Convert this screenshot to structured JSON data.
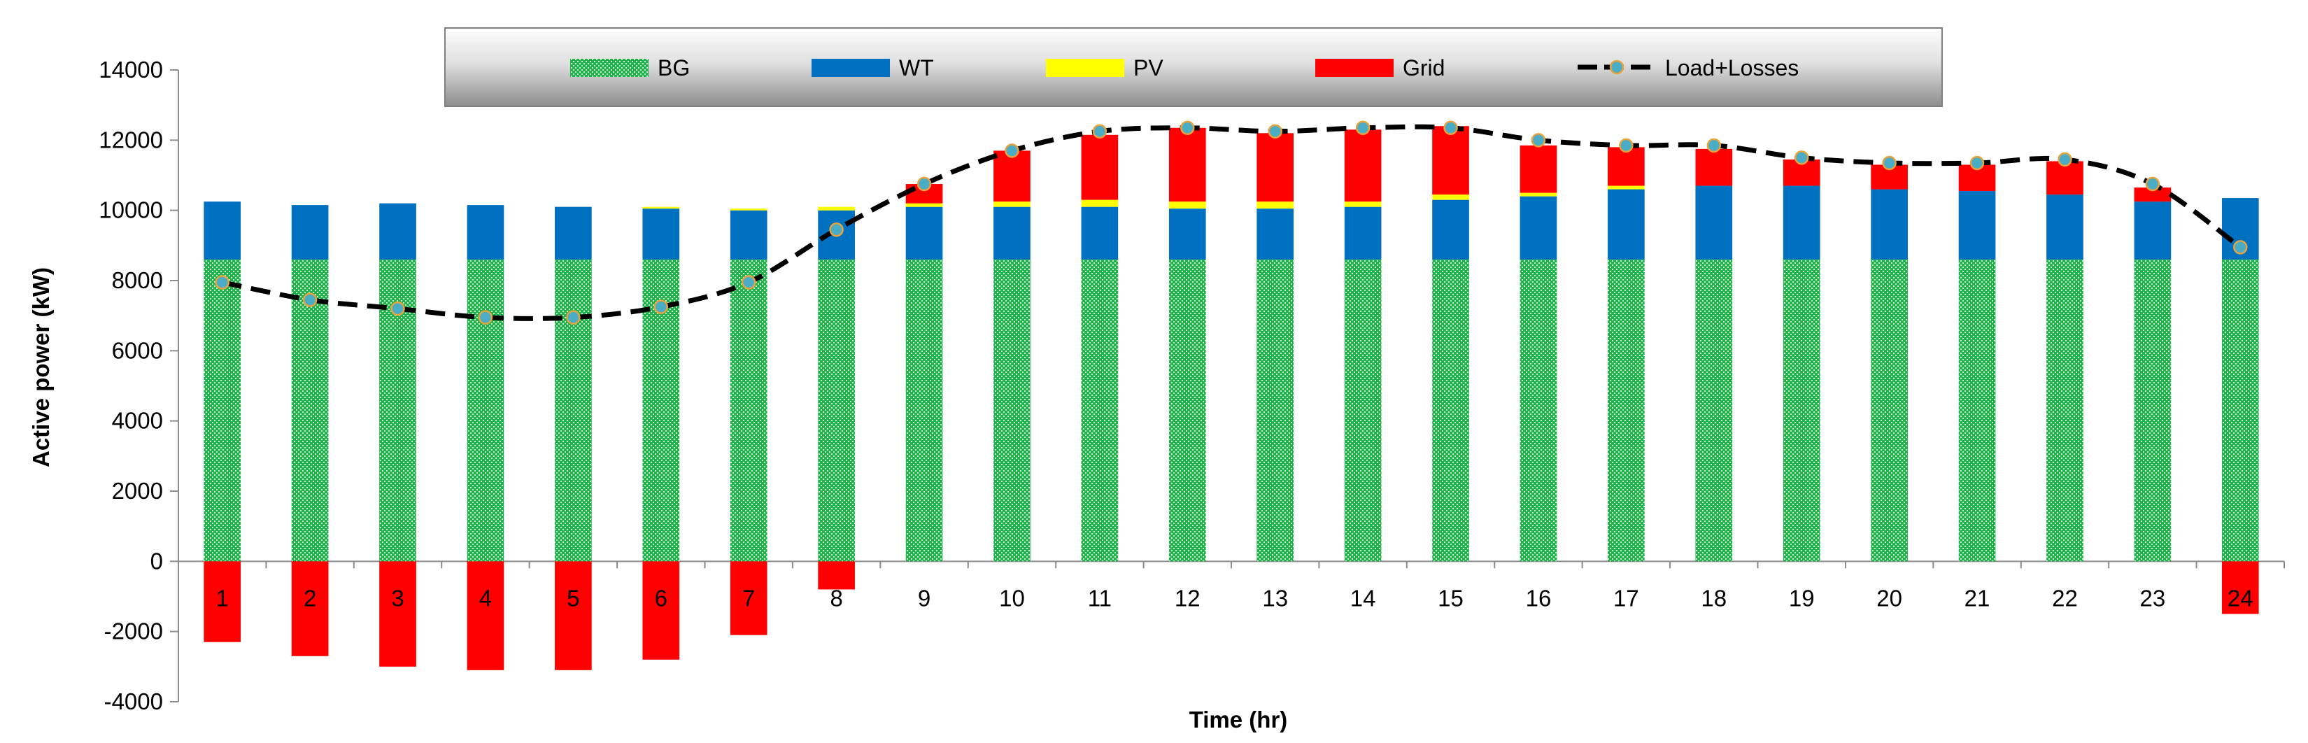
{
  "chart_data": {
    "type": "bar",
    "stacked": true,
    "title": "",
    "xlabel": "Time (hr)",
    "ylabel": "Active power (kW)",
    "ylim": [
      -4000,
      14000
    ],
    "yticks": [
      -4000,
      -2000,
      0,
      2000,
      4000,
      6000,
      8000,
      10000,
      12000,
      14000
    ],
    "grid": false,
    "legend_position": "top",
    "categories": [
      "1",
      "2",
      "3",
      "4",
      "5",
      "6",
      "7",
      "8",
      "9",
      "10",
      "11",
      "12",
      "13",
      "14",
      "15",
      "16",
      "17",
      "18",
      "19",
      "20",
      "21",
      "22",
      "23",
      "24"
    ],
    "series": [
      {
        "name": "BG",
        "kind": "bar",
        "color": "#22b14c",
        "pattern": "dotted",
        "values": [
          8600,
          8600,
          8600,
          8600,
          8600,
          8600,
          8600,
          8600,
          8600,
          8600,
          8600,
          8600,
          8600,
          8600,
          8600,
          8600,
          8600,
          8600,
          8600,
          8600,
          8600,
          8600,
          8600,
          8600
        ]
      },
      {
        "name": "WT",
        "kind": "bar",
        "color": "#0070c0",
        "values": [
          1650,
          1550,
          1600,
          1550,
          1500,
          1450,
          1400,
          1400,
          1500,
          1500,
          1500,
          1450,
          1450,
          1500,
          1700,
          1800,
          2000,
          2100,
          2100,
          2000,
          1950,
          1850,
          1650,
          1750
        ]
      },
      {
        "name": "PV",
        "kind": "bar",
        "color": "#ffff00",
        "values": [
          0,
          0,
          0,
          0,
          0,
          50,
          50,
          100,
          100,
          150,
          200,
          200,
          200,
          150,
          150,
          100,
          100,
          0,
          0,
          0,
          0,
          0,
          0,
          0
        ]
      },
      {
        "name": "Grid",
        "kind": "bar",
        "color": "#ff0000",
        "values": [
          -2300,
          -2700,
          -3000,
          -3100,
          -3100,
          -2800,
          -2100,
          -800,
          550,
          1450,
          1850,
          2100,
          1950,
          2050,
          1950,
          1350,
          1100,
          1050,
          750,
          700,
          750,
          950,
          400,
          -1500
        ]
      },
      {
        "name": "Load+Losses",
        "kind": "line",
        "color": "#000000",
        "marker_color": "#4bacc6",
        "values": [
          7950,
          7450,
          7200,
          6950,
          6950,
          7250,
          7950,
          9450,
          10750,
          11700,
          12250,
          12350,
          12250,
          12350,
          12350,
          12000,
          11850,
          11850,
          11500,
          11350,
          11350,
          11450,
          10750,
          8950
        ]
      }
    ]
  }
}
